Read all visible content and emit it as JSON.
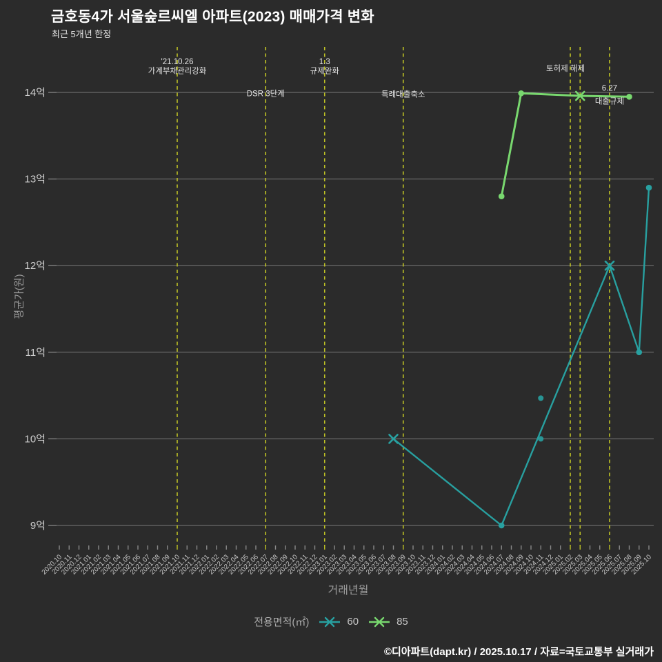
{
  "header": {
    "title": "금호동4가 서울숲르씨엘 아파트(2023) 매매가격 변화",
    "subtitle": "최근 5개년 한정"
  },
  "colors": {
    "background": "#2b2b2b",
    "series60": "#28a0a0",
    "series85": "#79d86f",
    "event_line": "#bfc325",
    "grid": "#8e8e8e",
    "tick": "#8a8a8a",
    "tick_label": "#c6c6c6",
    "y_label": "#cfcfcf",
    "annotation_text": "#e3e3e3",
    "title_text": "#ffffff",
    "axis_title": "#9a9a9a"
  },
  "chart_data": {
    "type": "line",
    "title": "금호동4가 서울숲르씨엘 아파트(2023) 매매가격 변화",
    "subtitle": "최근 5개년 한정",
    "xlabel": "거래년월",
    "ylabel": "평균가(원)",
    "grid": true,
    "ylim": [
      8.7,
      14.5
    ],
    "y_unit": "억",
    "y_ticks": [
      {
        "value": 9,
        "label": "9억"
      },
      {
        "value": 10,
        "label": "10억"
      },
      {
        "value": 11,
        "label": "11억"
      },
      {
        "value": 12,
        "label": "12억"
      },
      {
        "value": 13,
        "label": "13억"
      },
      {
        "value": 14,
        "label": "14억"
      }
    ],
    "x_categories": [
      "2020.10",
      "2020.11",
      "2020.12",
      "2021.01",
      "2021.02",
      "2021.03",
      "2021.04",
      "2021.05",
      "2021.06",
      "2021.07",
      "2021.08",
      "2021.09",
      "2021.10",
      "2021.11",
      "2021.12",
      "2022.01",
      "2022.02",
      "2022.03",
      "2022.04",
      "2022.05",
      "2022.06",
      "2022.07",
      "2022.08",
      "2022.09",
      "2022.10",
      "2022.11",
      "2022.12",
      "2023.01",
      "2023.02",
      "2023.03",
      "2023.04",
      "2023.05",
      "2023.06",
      "2023.07",
      "2023.08",
      "2023.09",
      "2023.10",
      "2023.11",
      "2023.12",
      "2024.01",
      "2024.02",
      "2024.03",
      "2024.04",
      "2024.05",
      "2024.06",
      "2024.07",
      "2024.08",
      "2024.09",
      "2024.10",
      "2024.11",
      "2024.12",
      "2025.01",
      "2025.02",
      "2025.03",
      "2025.04",
      "2025.05",
      "2025.06",
      "2025.07",
      "2025.08",
      "2025.09",
      "2025.10"
    ],
    "series": [
      {
        "name": "60",
        "color": "#28a0a0",
        "line_width": 2.4,
        "points": [
          {
            "x": "2023.08",
            "y": 10.0,
            "marker": "x"
          },
          {
            "x": "2024.07",
            "y": 9.0,
            "marker": "dot"
          },
          {
            "x": "2025.06",
            "y": 12.0,
            "marker": "x"
          },
          {
            "x": "2025.09",
            "y": 11.0,
            "marker": "dot"
          },
          {
            "x": "2025.10",
            "y": 12.9,
            "marker": "dot"
          }
        ],
        "isolated_points": [
          {
            "x": "2024.11",
            "y": 10.47
          },
          {
            "x": "2024.11",
            "y": 10.0
          }
        ]
      },
      {
        "name": "85",
        "color": "#79d86f",
        "line_width": 3,
        "points": [
          {
            "x": "2024.07",
            "y": 12.8,
            "marker": "dot"
          },
          {
            "x": "2024.09",
            "y": 13.99,
            "marker": "dot"
          },
          {
            "x": "2025.03",
            "y": 13.96,
            "marker": "x"
          },
          {
            "x": "2025.08",
            "y": 13.95,
            "marker": "dot"
          }
        ],
        "isolated_points": []
      }
    ],
    "events": [
      {
        "date": "2021.10",
        "labels": [
          {
            "text": "'21.10.26",
            "y": 14.36
          },
          {
            "text": "가계부채관리강화",
            "y": 14.25
          }
        ]
      },
      {
        "date": "2022.07",
        "labels": [
          {
            "text": "DSR 3단계",
            "y": 13.99
          }
        ]
      },
      {
        "date": "2023.01",
        "labels": [
          {
            "text": "1.3",
            "y": 14.36
          },
          {
            "text": "규제완화",
            "y": 14.25
          }
        ]
      },
      {
        "date": "2023.09",
        "labels": [
          {
            "text": "특례대출축소",
            "y": 13.98
          }
        ]
      },
      {
        "date": "2025.02",
        "labels": [
          {
            "text": "토허제 해제",
            "y": 14.28
          }
        ],
        "label_dx": -7
      },
      {
        "date": "2025.03",
        "labels": []
      },
      {
        "date": "2025.06",
        "labels": [
          {
            "text": "6.27",
            "y": 14.05
          },
          {
            "text": "대출규제",
            "y": 13.9
          }
        ]
      }
    ],
    "legend": {
      "title": "전용면적(㎡)",
      "entries": [
        "60",
        "85"
      ],
      "position": "bottom-center"
    }
  },
  "footer": {
    "credit": "©디아파트(dapt.kr) / 2025.10.17 / 자료=국토교통부 실거래가"
  }
}
